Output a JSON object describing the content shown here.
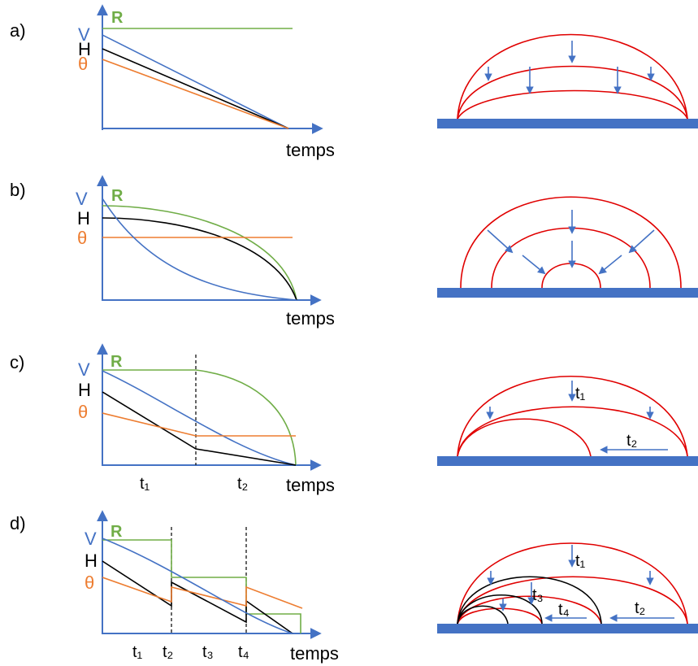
{
  "colors": {
    "blue": "#4472C4",
    "black": "#000000",
    "orange": "#ED7D31",
    "green": "#70AD47",
    "red": "#E00000"
  },
  "axis_labels": {
    "V": "V",
    "H": "H",
    "theta": "θ",
    "R": "R",
    "time": "temps"
  },
  "panels": [
    {
      "id": "a",
      "label": "a)"
    },
    {
      "id": "b",
      "label": "b)"
    },
    {
      "id": "c",
      "label": "c)",
      "time_labels": [
        "t₁",
        "t₂"
      ],
      "drop_labels": [
        "t₁",
        "t₂"
      ]
    },
    {
      "id": "d",
      "label": "d)",
      "time_labels": [
        "t₁",
        "t₂",
        "t₃",
        "t₄"
      ],
      "drop_labels": [
        "t₁",
        "t₂",
        "t₃",
        "t₄"
      ]
    }
  ]
}
